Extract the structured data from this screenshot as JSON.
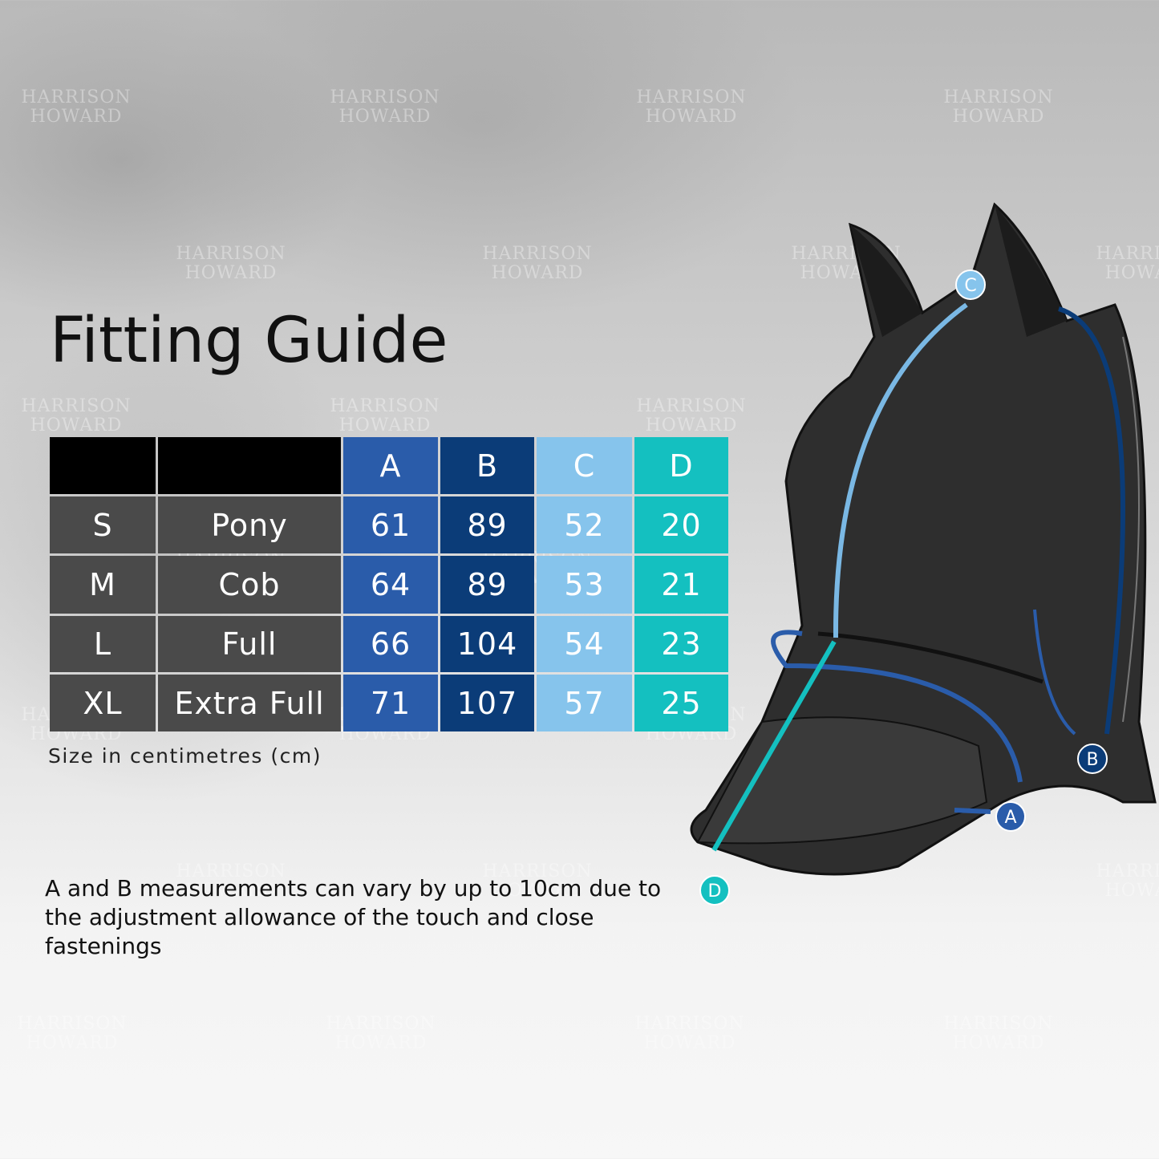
{
  "title": "Fitting Guide",
  "watermark": [
    "HARRISON",
    "HOWARD"
  ],
  "table": {
    "headers": [
      "",
      "",
      "A",
      "B",
      "C",
      "D"
    ],
    "rows": [
      [
        "S",
        "Pony",
        "61",
        "89",
        "52",
        "20"
      ],
      [
        "M",
        "Cob",
        "64",
        "89",
        "53",
        "21"
      ],
      [
        "L",
        "Full",
        "66",
        "104",
        "54",
        "23"
      ],
      [
        "XL",
        "Extra Full",
        "71",
        "107",
        "57",
        "25"
      ]
    ]
  },
  "colors": {
    "header_black": "#000000",
    "label_grey": "#4a4a4a",
    "A": "#2a5caa",
    "B": "#0b3c78",
    "C": "#86c4ec",
    "D": "#14c0c0"
  },
  "unit_note": "Size in centimetres (cm)",
  "disclaimer": "A and B measurements can vary by up to 10cm due to the adjustment allowance of the touch and close fastenings",
  "markers": [
    "A",
    "B",
    "C",
    "D"
  ]
}
